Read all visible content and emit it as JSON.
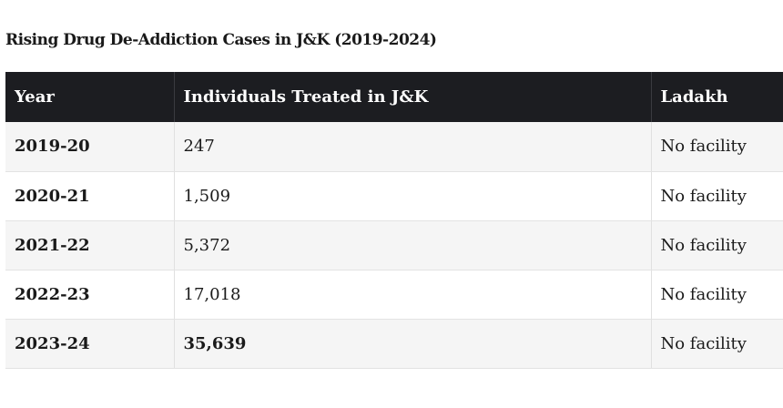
{
  "title": "Rising Drug De-Addiction Cases in J&K (2019-2024)",
  "table": {
    "headers": [
      "Year",
      "Individuals Treated in J&K",
      "Ladakh"
    ],
    "rows": [
      {
        "year": "2019-20",
        "treated": "247",
        "ladakh": "No facility"
      },
      {
        "year": "2020-21",
        "treated": "1,509",
        "ladakh": "No facility"
      },
      {
        "year": "2021-22",
        "treated": "5,372",
        "ladakh": "No facility"
      },
      {
        "year": "2022-23",
        "treated": "17,018",
        "ladakh": "No facility"
      },
      {
        "year": "2023-24",
        "treated": "35,639",
        "ladakh": "No facility"
      }
    ]
  }
}
